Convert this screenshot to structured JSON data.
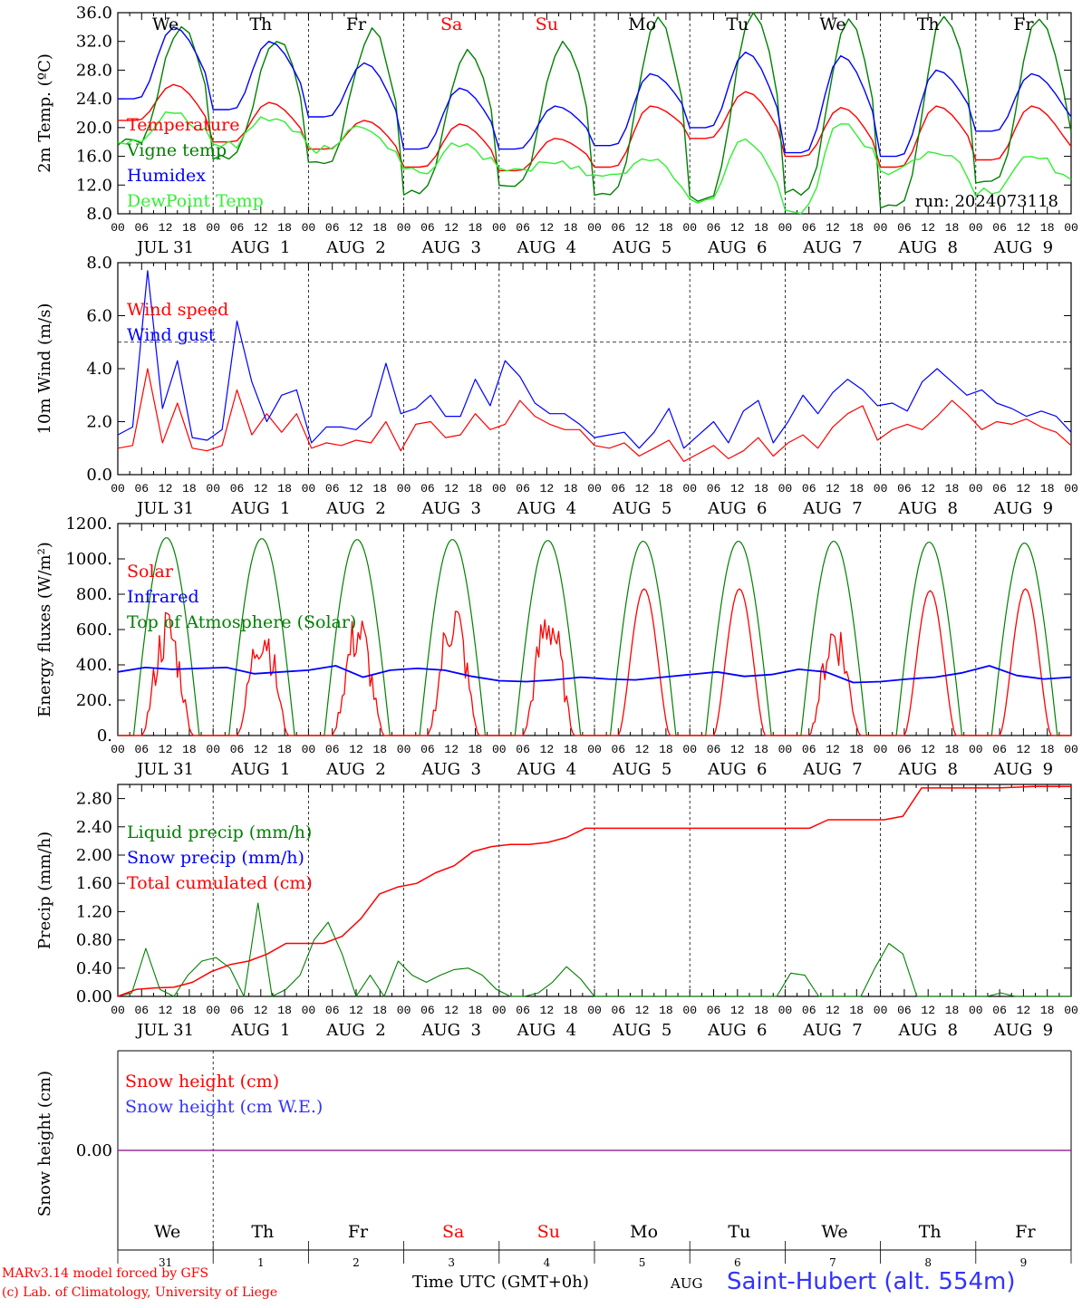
{
  "chart_data": [
    {
      "id": "temperature",
      "type": "line",
      "ylabel": "2m Temp. (ºC)",
      "ylim": [
        8,
        36
      ],
      "yticks": [
        "8.0",
        "12.0",
        "16.0",
        "20.0",
        "24.0",
        "28.0",
        "32.0",
        "36.0"
      ],
      "run_label": "run: 2024073118",
      "weekday_labels": [
        "We",
        "Th",
        "Fr",
        "Sa",
        "Su",
        "Mo",
        "Tu",
        "We",
        "Th",
        "Fr"
      ],
      "weekend_color": "#ff0000",
      "series": [
        {
          "name": "Temperature",
          "color": "#ff0000",
          "peaks": [
            26,
            23.5,
            21,
            20.5,
            18.5,
            23,
            25,
            22.8,
            23,
            23
          ],
          "troughs": [
            21,
            18,
            17,
            14.5,
            14,
            14.5,
            18.5,
            16,
            14.5,
            15.5
          ]
        },
        {
          "name": "Vigne temp",
          "color": "#008000",
          "peaks": [
            34,
            32.5,
            33.5,
            31,
            32,
            35,
            36,
            35,
            35.5,
            35.5
          ],
          "troughs": [
            18,
            16,
            15,
            11,
            12,
            11,
            10,
            11,
            9,
            12.5
          ]
        },
        {
          "name": "Humidex",
          "color": "#0000ff",
          "peaks": [
            34,
            32,
            29,
            25.5,
            23,
            27.5,
            30.5,
            30,
            28,
            27.5
          ],
          "troughs": [
            24,
            22.5,
            21.5,
            17,
            17,
            17.5,
            20,
            16.5,
            16,
            19.5
          ]
        },
        {
          "name": "DewPoint Temp",
          "color": "#33ee33",
          "peaks": [
            22,
            21.5,
            20,
            17.5,
            15,
            15.5,
            18,
            20.5,
            17,
            16.5
          ],
          "troughs": [
            18,
            17.5,
            17,
            14,
            14,
            13,
            10,
            8.5,
            14,
            11
          ]
        }
      ]
    },
    {
      "id": "wind",
      "type": "line",
      "ylabel": "10m Wind (m/s)",
      "ylim": [
        0,
        8
      ],
      "yticks": [
        "0.0",
        "2.0",
        "4.0",
        "6.0",
        "8.0"
      ],
      "threshold_line": 5,
      "series": [
        {
          "name": "Wind speed",
          "color": "#ff0000",
          "values": [
            1.0,
            1.1,
            4.0,
            1.2,
            2.7,
            1.0,
            0.9,
            1.1,
            3.2,
            1.5,
            2.3,
            1.6,
            2.3,
            1.0,
            1.2,
            1.1,
            1.3,
            1.2,
            2.0,
            0.9,
            1.9,
            2.0,
            1.4,
            1.5,
            2.3,
            1.7,
            1.9,
            2.8,
            2.2,
            1.9,
            1.7,
            1.7,
            1.1,
            1.0,
            1.2,
            0.7,
            1.0,
            1.3,
            0.5,
            0.8,
            1.1,
            0.6,
            0.9,
            1.4,
            0.7,
            1.2,
            1.5,
            1.0,
            1.8,
            2.3,
            2.6,
            1.3,
            1.7,
            1.9,
            1.7,
            2.2,
            2.8,
            2.3,
            1.7,
            2.0,
            1.9,
            2.1,
            1.8,
            1.6,
            1.1
          ]
        },
        {
          "name": "Wind gust",
          "color": "#0000ff",
          "values": [
            1.5,
            1.8,
            7.7,
            2.5,
            4.3,
            1.4,
            1.3,
            1.7,
            5.8,
            3.5,
            2.0,
            3.0,
            3.2,
            1.2,
            1.8,
            1.8,
            1.7,
            2.2,
            4.2,
            2.3,
            2.5,
            3.0,
            2.2,
            2.2,
            3.6,
            2.6,
            4.3,
            3.7,
            2.7,
            2.3,
            2.3,
            1.9,
            1.4,
            1.5,
            1.6,
            1.0,
            1.6,
            2.5,
            1.0,
            1.5,
            2.0,
            1.2,
            2.4,
            2.8,
            1.2,
            2.0,
            3.0,
            2.3,
            3.1,
            3.6,
            3.2,
            2.6,
            2.7,
            2.4,
            3.5,
            4.0,
            3.5,
            3.0,
            3.2,
            2.7,
            2.5,
            2.2,
            2.4,
            2.2,
            1.6
          ]
        }
      ]
    },
    {
      "id": "energy",
      "type": "line",
      "ylabel": "Energy fluxes (W/m²)",
      "ylim": [
        0,
        1200
      ],
      "yticks": [
        "0.",
        "200.",
        "400.",
        "600.",
        "800.",
        "1000.",
        "1200."
      ],
      "series": [
        {
          "name": "Solar",
          "color": "#ff0000",
          "peaks": [
            750,
            740,
            740,
            840,
            820,
            830,
            830,
            720,
            820,
            830
          ]
        },
        {
          "name": "Infrared",
          "color": "#0000ff",
          "values": [
            360,
            385,
            375,
            380,
            385,
            350,
            360,
            370,
            395,
            330,
            370,
            380,
            370,
            335,
            310,
            305,
            315,
            330,
            320,
            315,
            330,
            345,
            360,
            335,
            345,
            375,
            360,
            300,
            305,
            320,
            330,
            355,
            395,
            340,
            320,
            330
          ]
        },
        {
          "name": "Top of Atmosphere (Solar)",
          "color": "#008000",
          "peaks": [
            1120,
            1115,
            1110,
            1110,
            1105,
            1100,
            1100,
            1100,
            1095,
            1090
          ]
        }
      ]
    },
    {
      "id": "precip",
      "type": "line",
      "ylabel": "Precip (mm/h)",
      "ylim": [
        0,
        3.0
      ],
      "yticks": [
        "0.00",
        "0.40",
        "0.80",
        "1.20",
        "1.60",
        "2.00",
        "2.40",
        "2.80"
      ],
      "series": [
        {
          "name": "Liquid precip (mm/h)",
          "color": "#008000",
          "values": [
            0.0,
            0.05,
            0.68,
            0.1,
            0.0,
            0.3,
            0.5,
            0.55,
            0.4,
            0.0,
            1.32,
            0.0,
            0.1,
            0.3,
            0.8,
            1.05,
            0.6,
            0.0,
            0.3,
            0.0,
            0.5,
            0.3,
            0.2,
            0.3,
            0.38,
            0.4,
            0.3,
            0.1,
            0.0,
            0.0,
            0.05,
            0.2,
            0.42,
            0.25,
            0.0,
            0.0,
            0.0,
            0.0,
            0.0,
            0.0,
            0.0,
            0.0,
            0.0,
            0.0,
            0.0,
            0.0,
            0.0,
            0.0,
            0.33,
            0.3,
            0.0,
            0.0,
            0.0,
            0.0,
            0.4,
            0.75,
            0.6,
            0.0,
            0.0,
            0.0,
            0.0,
            0.0,
            0.0,
            0.05,
            0.0,
            0.0,
            0.0,
            0.0,
            0.0
          ]
        },
        {
          "name": "Snow precip (mm/h)",
          "color": "#0000ff",
          "values": [
            0,
            0
          ]
        },
        {
          "name": "Total cumulated (cm)",
          "color": "#ff0000",
          "cumulative": [
            0.0,
            0.1,
            0.12,
            0.13,
            0.2,
            0.35,
            0.45,
            0.5,
            0.6,
            0.75,
            0.75,
            0.75,
            0.85,
            1.1,
            1.45,
            1.55,
            1.6,
            1.75,
            1.85,
            2.05,
            2.12,
            2.15,
            2.15,
            2.18,
            2.25,
            2.38,
            2.38,
            2.38,
            2.38,
            2.38,
            2.38,
            2.38,
            2.38,
            2.38,
            2.38,
            2.38,
            2.38,
            2.38,
            2.5,
            2.5,
            2.5,
            2.5,
            2.55,
            2.95,
            2.95,
            2.95,
            2.95,
            2.95,
            2.96,
            2.97,
            2.97,
            2.97
          ]
        }
      ]
    },
    {
      "id": "snow",
      "type": "line",
      "ylabel": "Snow height (cm)",
      "yticks": [
        "0.00"
      ],
      "series": [
        {
          "name": "Snow height (cm)",
          "color": "#ff0000",
          "values": [
            0,
            0
          ]
        },
        {
          "name": "Snow height (cm W.E.)",
          "color": "#3333ff",
          "values": [
            0,
            0
          ]
        }
      ]
    }
  ],
  "x_axis": {
    "hour_ticks": [
      "00",
      "06",
      "12",
      "18"
    ],
    "end_tick": "00",
    "date_labels": [
      "JUL 31",
      "AUG  1",
      "AUG  2",
      "AUG  3",
      "AUG  4",
      "AUG  5",
      "AUG  6",
      "AUG  7",
      "AUG  8",
      "AUG  9"
    ],
    "bottom_weekdays": [
      "We",
      "Th",
      "Fr",
      "Sa",
      "Su",
      "Mo",
      "Tu",
      "We",
      "Th",
      "Fr"
    ],
    "bottom_days": [
      "31",
      "1",
      "2",
      "3",
      "4",
      "5",
      "6",
      "7",
      "8",
      "9"
    ],
    "title": "Time UTC (GMT+0h)",
    "month": "AUG"
  },
  "footer": {
    "credit_line1": "MARv3.14 model forced by GFS",
    "credit_line2": "(c) Lab. of Climatology, University of Liege",
    "station": "Saint-Hubert (alt. 554m)"
  }
}
